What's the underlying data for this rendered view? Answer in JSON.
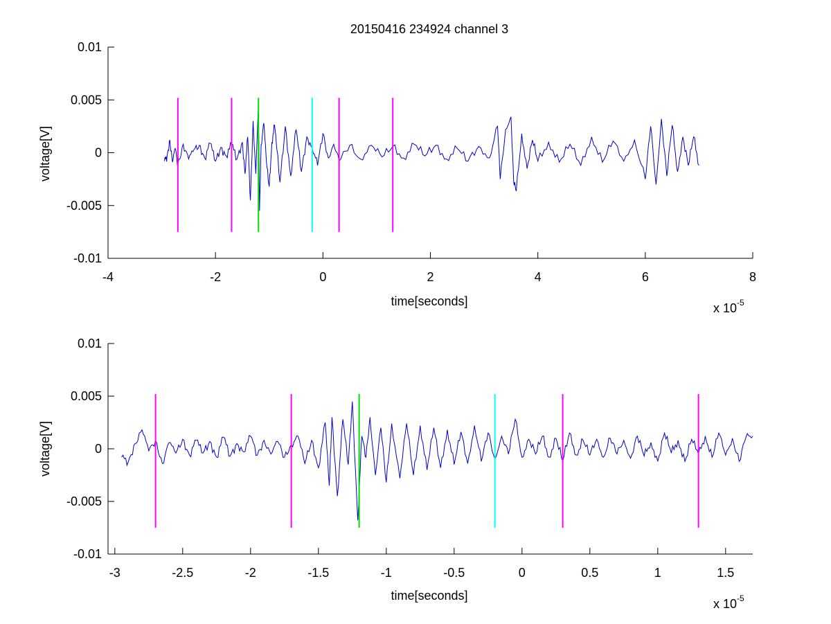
{
  "chart_data": [
    {
      "type": "line",
      "title": "20150416 234924 channel 3",
      "xlabel": "time[seconds]",
      "ylabel": "voltage[V]",
      "x_multiplier_base": "x 10",
      "x_multiplier_exponent": "-5",
      "xlim": [
        -4,
        8
      ],
      "ylim": [
        -0.01,
        0.01
      ],
      "x_ticks": [
        -4,
        -2,
        0,
        2,
        4,
        6,
        8
      ],
      "x_tick_labels": [
        "-4",
        "-2",
        "0",
        "2",
        "4",
        "6",
        "8"
      ],
      "y_ticks": [
        -0.01,
        -0.005,
        0,
        0.005,
        0.01
      ],
      "y_tick_labels": [
        "-0.01",
        "-0.005",
        "0",
        "0.005",
        "0.01"
      ],
      "grid": false,
      "signal": {
        "color": "#0000c8",
        "x_start": -2.95,
        "x_end": 7.0,
        "points": [
          [
            -2.95,
            -0.0008
          ],
          [
            -2.9,
            -0.0003
          ],
          [
            -2.85,
            0.0012
          ],
          [
            -2.8,
            -0.0009
          ],
          [
            -2.75,
            0.0004
          ],
          [
            -2.7,
            -0.0011
          ],
          [
            -2.6,
            0.0008
          ],
          [
            -2.5,
            -0.0006
          ],
          [
            -2.4,
            0.0003
          ],
          [
            -2.3,
            0.0007
          ],
          [
            -2.2,
            -0.0005
          ],
          [
            -2.1,
            0.0009
          ],
          [
            -2.0,
            -0.0008
          ],
          [
            -1.9,
            0.0005
          ],
          [
            -1.8,
            -0.0003
          ],
          [
            -1.7,
            0.0008
          ],
          [
            -1.6,
            -0.0006
          ],
          [
            -1.5,
            0.001
          ],
          [
            -1.45,
            -0.002
          ],
          [
            -1.4,
            0.0015
          ],
          [
            -1.35,
            -0.0045
          ],
          [
            -1.3,
            0.003
          ],
          [
            -1.25,
            -0.002
          ],
          [
            -1.2,
            0.0045
          ],
          [
            -1.18,
            -0.0055
          ],
          [
            -1.15,
            0.0008
          ],
          [
            -1.1,
            0.0028
          ],
          [
            -1.05,
            -0.001
          ],
          [
            -1.0,
            -0.0032
          ],
          [
            -0.95,
            0.001
          ],
          [
            -0.9,
            0.0026
          ],
          [
            -0.8,
            -0.0028
          ],
          [
            -0.7,
            0.0025
          ],
          [
            -0.6,
            -0.0022
          ],
          [
            -0.5,
            0.0022
          ],
          [
            -0.4,
            -0.0018
          ],
          [
            -0.3,
            0.0015
          ],
          [
            -0.2,
            0.0005
          ],
          [
            -0.1,
            -0.0012
          ],
          [
            0.0,
            0.0018
          ],
          [
            0.1,
            -0.0005
          ],
          [
            0.2,
            0.0008
          ],
          [
            0.3,
            -0.0008
          ],
          [
            0.5,
            0.0007
          ],
          [
            0.7,
            -0.0006
          ],
          [
            0.9,
            0.0007
          ],
          [
            1.1,
            -0.0004
          ],
          [
            1.3,
            0.0006
          ],
          [
            1.5,
            -0.0005
          ],
          [
            1.7,
            0.0008
          ],
          [
            1.9,
            -0.0003
          ],
          [
            2.1,
            0.0007
          ],
          [
            2.3,
            -0.0006
          ],
          [
            2.5,
            0.0004
          ],
          [
            2.7,
            -0.0008
          ],
          [
            2.9,
            0.0006
          ],
          [
            3.1,
            -0.0005
          ],
          [
            3.25,
            0.0025
          ],
          [
            3.3,
            -0.0025
          ],
          [
            3.4,
            0.0022
          ],
          [
            3.5,
            0.0034
          ],
          [
            3.55,
            -0.0028
          ],
          [
            3.6,
            -0.0036
          ],
          [
            3.7,
            0.0018
          ],
          [
            3.8,
            -0.0015
          ],
          [
            3.9,
            0.0012
          ],
          [
            4.0,
            -0.0008
          ],
          [
            4.2,
            0.001
          ],
          [
            4.4,
            -0.0009
          ],
          [
            4.6,
            0.0008
          ],
          [
            4.8,
            -0.0012
          ],
          [
            5.0,
            0.0015
          ],
          [
            5.2,
            -0.0009
          ],
          [
            5.4,
            0.0011
          ],
          [
            5.6,
            -0.0008
          ],
          [
            5.8,
            0.0012
          ],
          [
            6.0,
            -0.0025
          ],
          [
            6.1,
            0.0025
          ],
          [
            6.2,
            -0.003
          ],
          [
            6.3,
            0.0032
          ],
          [
            6.4,
            -0.0022
          ],
          [
            6.5,
            0.0026
          ],
          [
            6.6,
            -0.0018
          ],
          [
            6.7,
            0.0015
          ],
          [
            6.8,
            -0.0012
          ],
          [
            6.9,
            0.0015
          ],
          [
            7.0,
            -0.0012
          ]
        ]
      },
      "markers": [
        {
          "x": -2.7,
          "color": "#ff00ff",
          "y_range": [
            -0.0075,
            0.0052
          ]
        },
        {
          "x": -1.7,
          "color": "#ff00ff",
          "y_range": [
            -0.0075,
            0.0052
          ]
        },
        {
          "x": -1.2,
          "color": "#00dd00",
          "y_range": [
            -0.0075,
            0.0052
          ]
        },
        {
          "x": -0.2,
          "color": "#00ffff",
          "y_range": [
            -0.0075,
            0.0052
          ]
        },
        {
          "x": 0.3,
          "color": "#ff00ff",
          "y_range": [
            -0.0075,
            0.0052
          ]
        },
        {
          "x": 1.3,
          "color": "#ff00ff",
          "y_range": [
            -0.0075,
            0.0052
          ]
        }
      ]
    },
    {
      "type": "line",
      "title": "",
      "xlabel": "time[seconds]",
      "ylabel": "voltage[V]",
      "x_multiplier_base": "x 10",
      "x_multiplier_exponent": "-5",
      "xlim": [
        -3.05,
        1.7
      ],
      "ylim": [
        -0.01,
        0.01
      ],
      "x_ticks": [
        -3,
        -2.5,
        -2,
        -1.5,
        -1,
        -0.5,
        0,
        0.5,
        1,
        1.5
      ],
      "x_tick_labels": [
        "-3",
        "-2.5",
        "-2",
        "-1.5",
        "-1",
        "-0.5",
        "0",
        "0.5",
        "1",
        "1.5"
      ],
      "y_ticks": [
        -0.01,
        -0.005,
        0,
        0.005,
        0.01
      ],
      "y_tick_labels": [
        "-0.01",
        "-0.005",
        "0",
        "0.005",
        "0.01"
      ],
      "grid": false,
      "signal": {
        "color": "#0000c8",
        "x_start": -2.95,
        "x_end": 1.7,
        "points": [
          [
            -2.95,
            -0.0008
          ],
          [
            -2.9,
            -0.0012
          ],
          [
            -2.85,
            0.0005
          ],
          [
            -2.8,
            0.0018
          ],
          [
            -2.75,
            -0.0002
          ],
          [
            -2.7,
            0.0008
          ],
          [
            -2.65,
            -0.0014
          ],
          [
            -2.6,
            0.0006
          ],
          [
            -2.55,
            -0.0004
          ],
          [
            -2.5,
            0.0009
          ],
          [
            -2.45,
            -0.0006
          ],
          [
            -2.4,
            0.0008
          ],
          [
            -2.35,
            -0.0004
          ],
          [
            -2.3,
            0.0007
          ],
          [
            -2.25,
            -0.0008
          ],
          [
            -2.2,
            0.0011
          ],
          [
            -2.15,
            -0.0007
          ],
          [
            -2.1,
            0.0005
          ],
          [
            -2.05,
            -0.0003
          ],
          [
            -2.0,
            0.0012
          ],
          [
            -1.95,
            -0.0006
          ],
          [
            -1.9,
            0.0008
          ],
          [
            -1.85,
            -0.0005
          ],
          [
            -1.8,
            0.0007
          ],
          [
            -1.75,
            -0.0008
          ],
          [
            -1.7,
            0.0004
          ],
          [
            -1.65,
            0.0012
          ],
          [
            -1.6,
            -0.0014
          ],
          [
            -1.55,
            0.0008
          ],
          [
            -1.5,
            -0.0018
          ],
          [
            -1.45,
            0.0025
          ],
          [
            -1.42,
            -0.0035
          ],
          [
            -1.4,
            0.003
          ],
          [
            -1.36,
            -0.0045
          ],
          [
            -1.32,
            0.0028
          ],
          [
            -1.28,
            -0.0015
          ],
          [
            -1.25,
            0.0045
          ],
          [
            -1.21,
            -0.0068
          ],
          [
            -1.18,
            0.0012
          ],
          [
            -1.15,
            -0.0008
          ],
          [
            -1.12,
            0.003
          ],
          [
            -1.08,
            -0.0025
          ],
          [
            -1.04,
            0.002
          ],
          [
            -1.0,
            -0.0032
          ],
          [
            -0.96,
            0.0024
          ],
          [
            -0.9,
            -0.0028
          ],
          [
            -0.85,
            0.0024
          ],
          [
            -0.8,
            -0.0025
          ],
          [
            -0.75,
            0.0022
          ],
          [
            -0.7,
            -0.002
          ],
          [
            -0.65,
            0.002
          ],
          [
            -0.6,
            -0.0018
          ],
          [
            -0.55,
            0.0018
          ],
          [
            -0.5,
            -0.0015
          ],
          [
            -0.45,
            0.0016
          ],
          [
            -0.4,
            -0.0014
          ],
          [
            -0.35,
            0.0022
          ],
          [
            -0.3,
            -0.0012
          ],
          [
            -0.25,
            0.0015
          ],
          [
            -0.2,
            -0.001
          ],
          [
            -0.15,
            0.0012
          ],
          [
            -0.1,
            -0.0005
          ],
          [
            -0.05,
            0.0028
          ],
          [
            0.0,
            -0.0008
          ],
          [
            0.05,
            0.0009
          ],
          [
            0.1,
            -0.0005
          ],
          [
            0.15,
            0.0012
          ],
          [
            0.2,
            -0.0008
          ],
          [
            0.25,
            0.001
          ],
          [
            0.3,
            -0.0012
          ],
          [
            0.35,
            0.0015
          ],
          [
            0.4,
            -0.0006
          ],
          [
            0.45,
            0.0008
          ],
          [
            0.5,
            -0.0006
          ],
          [
            0.55,
            0.0009
          ],
          [
            0.6,
            -0.0008
          ],
          [
            0.65,
            0.001
          ],
          [
            0.7,
            -0.0005
          ],
          [
            0.75,
            0.0008
          ],
          [
            0.8,
            -0.0009
          ],
          [
            0.85,
            0.0012
          ],
          [
            0.9,
            -0.0007
          ],
          [
            0.95,
            0.0006
          ],
          [
            1.0,
            -0.0012
          ],
          [
            1.05,
            0.0015
          ],
          [
            1.1,
            -0.0004
          ],
          [
            1.15,
            0.0008
          ],
          [
            1.2,
            -0.0012
          ],
          [
            1.25,
            0.0009
          ],
          [
            1.3,
            -0.0005
          ],
          [
            1.35,
            0.0012
          ],
          [
            1.4,
            -0.0008
          ],
          [
            1.45,
            0.0015
          ],
          [
            1.5,
            -0.0006
          ],
          [
            1.55,
            0.001
          ],
          [
            1.6,
            -0.0012
          ],
          [
            1.65,
            0.0011
          ],
          [
            1.7,
            0.0012
          ]
        ]
      },
      "markers": [
        {
          "x": -2.7,
          "color": "#ff00ff",
          "y_range": [
            -0.0075,
            0.0052
          ]
        },
        {
          "x": -1.7,
          "color": "#ff00ff",
          "y_range": [
            -0.0075,
            0.0052
          ]
        },
        {
          "x": -1.2,
          "color": "#00dd00",
          "y_range": [
            -0.0075,
            0.0052
          ]
        },
        {
          "x": -0.2,
          "color": "#00ffff",
          "y_range": [
            -0.0075,
            0.0052
          ]
        },
        {
          "x": 0.3,
          "color": "#ff00ff",
          "y_range": [
            -0.0075,
            0.0052
          ]
        },
        {
          "x": 1.3,
          "color": "#ff00ff",
          "y_range": [
            -0.0075,
            0.0052
          ]
        }
      ]
    }
  ]
}
